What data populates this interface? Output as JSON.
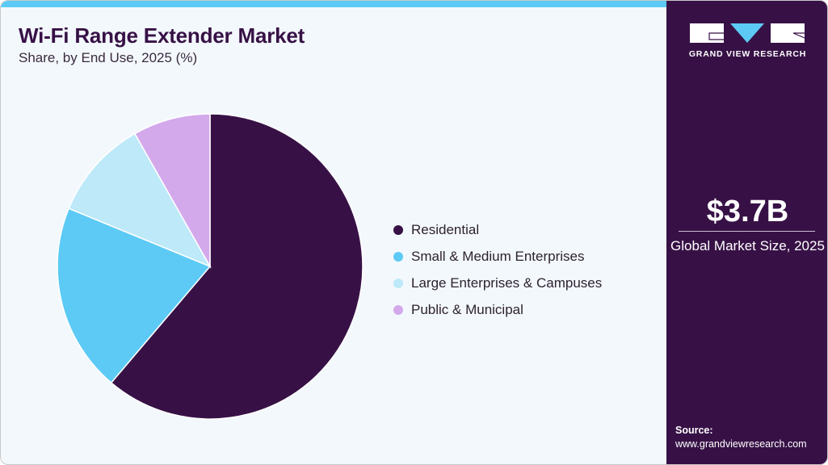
{
  "header": {
    "title": "Wi-Fi Range Extender Market",
    "subtitle": "Share, by End Use, 2025 (%)"
  },
  "colors": {
    "accent_bar": "#5ccaf5",
    "sidebar_bg": "#371146",
    "background": "#f3f8fc"
  },
  "legend": {
    "items": [
      {
        "label": "Residential",
        "color": "#371146"
      },
      {
        "label": "Small & Medium Enterprises",
        "color": "#5ccaf5"
      },
      {
        "label": "Large Enterprises & Campuses",
        "color": "#bde9f9"
      },
      {
        "label": "Public & Municipal",
        "color": "#d3a9ec"
      }
    ]
  },
  "sidebar": {
    "brand": "GRAND VIEW RESEARCH",
    "logo_icon": "gvr-logo-icon",
    "market_size": "$3.7B",
    "market_size_label": "Global Market Size, 2025",
    "source_label": "Source:",
    "source_url": "www.grandviewresearch.com"
  },
  "chart_data": {
    "type": "pie",
    "title": "Wi-Fi Range Extender Market",
    "subtitle": "Share, by End Use, 2025 (%)",
    "categories": [
      "Residential",
      "Small & Medium Enterprises",
      "Large Enterprises & Campuses",
      "Public & Municipal"
    ],
    "values": [
      61.2,
      20.0,
      10.6,
      8.2
    ],
    "colors": [
      "#371146",
      "#5ccaf5",
      "#bde9f9",
      "#d3a9ec"
    ],
    "start_angle": "12 o'clock, clockwise",
    "legend_position": "right",
    "data_labels": false
  }
}
